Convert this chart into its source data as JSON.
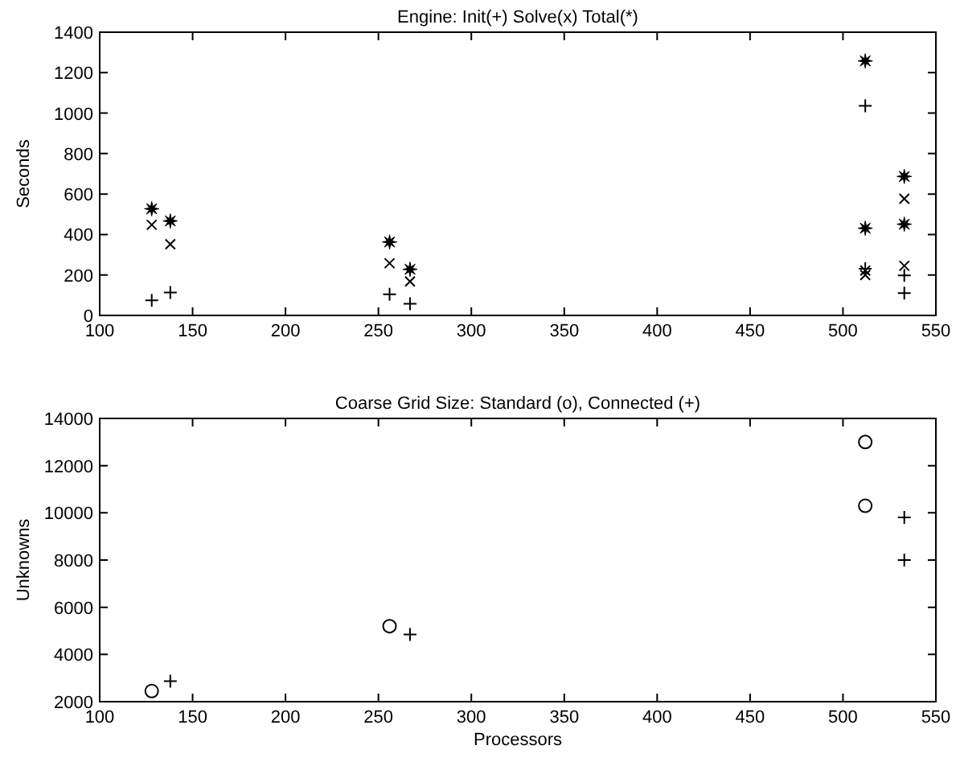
{
  "chart_data": [
    {
      "type": "scatter",
      "title": "Engine: Init(+) Solve(x) Total(*)",
      "ylabel": "Seconds",
      "xlim": [
        100,
        550
      ],
      "xticks": [
        100,
        150,
        200,
        250,
        300,
        350,
        400,
        450,
        500,
        550
      ],
      "ylim": [
        0,
        1400
      ],
      "yticks": [
        0,
        200,
        400,
        600,
        800,
        1000,
        1200,
        1400
      ],
      "grid": false,
      "series": [
        {
          "color": "#000000",
          "marker": "plus",
          "x": [
            128,
            138,
            256,
            267,
            512,
            512,
            533,
            533
          ],
          "values": [
            75,
            113,
            104,
            58,
            1036,
            231,
            198,
            110
          ]
        },
        {
          "color": "#000000",
          "marker": "cross",
          "x": [
            128,
            138,
            256,
            267,
            512,
            512,
            533,
            533
          ],
          "values": [
            448,
            352,
            258,
            168,
            222,
            200,
            245,
            577
          ]
        },
        {
          "color": "#000000",
          "marker": "star",
          "x": [
            128,
            138,
            256,
            267,
            512,
            512,
            533,
            533
          ],
          "values": [
            527,
            467,
            363,
            228,
            1258,
            431,
            451,
            687
          ]
        }
      ]
    },
    {
      "type": "scatter",
      "title": "Coarse Grid Size: Standard (o), Connected (+)",
      "xlabel": "Processors",
      "ylabel": "Unknowns",
      "xlim": [
        100,
        550
      ],
      "xticks": [
        100,
        150,
        200,
        250,
        300,
        350,
        400,
        450,
        500,
        550
      ],
      "ylim": [
        2000,
        14000
      ],
      "yticks": [
        2000,
        4000,
        6000,
        8000,
        10000,
        12000,
        14000
      ],
      "grid": false,
      "series": [
        {
          "color": "#000000",
          "marker": "circle",
          "x": [
            128,
            256,
            512,
            512
          ],
          "values": [
            2450,
            5200,
            13000,
            10300
          ]
        },
        {
          "color": "#000000",
          "marker": "plus",
          "x": [
            138,
            267,
            533,
            533
          ],
          "values": [
            2870,
            4850,
            9810,
            8000
          ]
        }
      ]
    }
  ]
}
